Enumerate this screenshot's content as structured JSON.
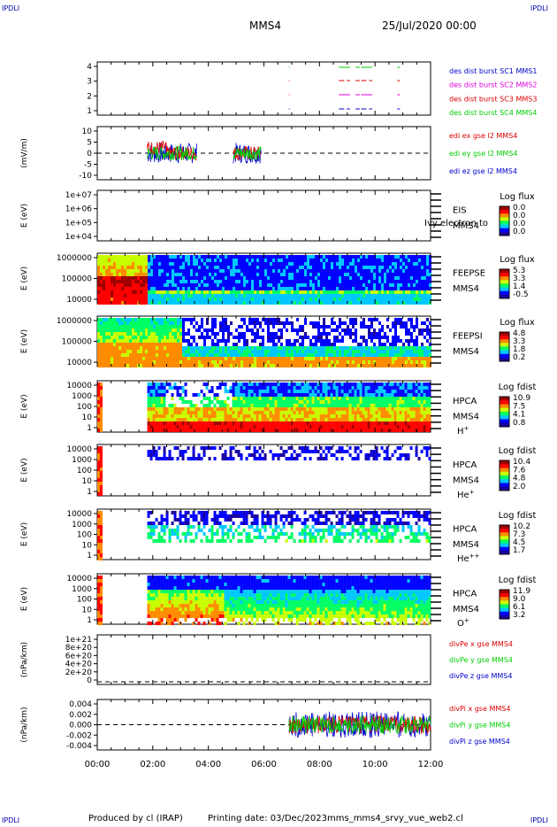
{
  "corner_label": "IPDLI",
  "header": {
    "spacecraft": "MMS4",
    "date": "25/Jul/2020 00:00"
  },
  "footer": {
    "producer": "Produced by cl (IRAP)",
    "printing": "Printing date: 03/Dec/2023",
    "script": "mms_mms4_srvy_vue_web2.cl"
  },
  "colors": {
    "red": "#dd0000",
    "green": "#00cc00",
    "blue": "#0000cc",
    "magenta": "#dd00dd",
    "spectrogram_scale": [
      "#1a00a0",
      "#0000ff",
      "#00c8ff",
      "#00ff64",
      "#c8ff00",
      "#ff8c00",
      "#ff0000",
      "#a00000"
    ]
  },
  "chart_data": {
    "type": "multi-panel time series",
    "x_tick_labels": [
      "00:00",
      "02:00",
      "04:00",
      "06:00",
      "08:00",
      "10:00",
      "12:00"
    ],
    "x_range_hours": [
      0,
      12
    ],
    "panels": [
      {
        "id": "burst",
        "y_ticks": [
          "4",
          "3",
          "2",
          "1"
        ],
        "right_labels": [
          {
            "text": "des dist burst SC1 MMS1",
            "color": "#0000cc"
          },
          {
            "text": "des dist burst SC2 MMS2",
            "color": "#dd00dd"
          },
          {
            "text": "des dist burst SC3 MMS3",
            "color": "#dd0000"
          },
          {
            "text": "des dist burst SC4 MMS4",
            "color": "#00cc00"
          }
        ],
        "intervals_hours": [
          [
            6.9,
            6.93
          ],
          [
            8.7,
            9.1
          ],
          [
            9.3,
            9.45
          ],
          [
            9.5,
            9.9
          ],
          [
            10.8,
            10.9
          ]
        ]
      },
      {
        "id": "edi",
        "ylabel": "(mV/m)",
        "y_ticks": [
          "10",
          "5",
          "0",
          "-5",
          "-10"
        ],
        "ylim": [
          -10,
          10
        ],
        "right_labels": [
          {
            "text": "edi ex gse l2 MMS4",
            "color": "#dd0000"
          },
          {
            "text": "edi ey gse l2 MMS4",
            "color": "#00cc00"
          },
          {
            "text": "edi ez gse l2 MMS4",
            "color": "#0000cc"
          }
        ],
        "intervals_hours": [
          [
            1.8,
            3.6
          ],
          [
            4.9,
            5.9
          ]
        ]
      },
      {
        "id": "eis",
        "ylabel": "E (eV)",
        "y_ticks": [
          "1e+07",
          "1e+06",
          "1e+05",
          "1e+04"
        ],
        "instrument": "EIS",
        "overlay_text": "Ivy electron to",
        "spacecraft": "MMS4",
        "cbar_title": "Log flux",
        "cbar_ticks": [
          "0.0",
          "0.0",
          "0.0",
          "0.0"
        ]
      },
      {
        "id": "feepse",
        "ylabel": "E (eV)",
        "y_ticks": [
          "1000000",
          "100000",
          "10000"
        ],
        "instrument": "FEEPSE",
        "spacecraft": "MMS4",
        "cbar_title": "Log flux",
        "cbar_ticks": [
          "5.3",
          "3.3",
          "1.4",
          "-0.5"
        ]
      },
      {
        "id": "feepsi",
        "ylabel": "E (eV)",
        "y_ticks": [
          "1000000",
          "100000",
          "10000"
        ],
        "instrument": "FEEPSI",
        "spacecraft": "MMS4",
        "cbar_title": "Log flux",
        "cbar_ticks": [
          "4.8",
          "3.3",
          "1.8",
          "0.2"
        ]
      },
      {
        "id": "hpca_h",
        "ylabel": "E (eV)",
        "y_ticks": [
          "10000",
          "1000",
          "100",
          "10",
          "1"
        ],
        "instrument": "HPCA",
        "spacecraft": "MMS4",
        "species": "H",
        "charge": "+",
        "cbar_title": "Log fdist",
        "cbar_ticks": [
          "10.9",
          "7.5",
          "4.1",
          "0.8"
        ]
      },
      {
        "id": "hpca_he1",
        "ylabel": "E (eV)",
        "y_ticks": [
          "10000",
          "1000",
          "100",
          "10",
          "1"
        ],
        "instrument": "HPCA",
        "spacecraft": "MMS4",
        "species": "He",
        "charge": "+",
        "cbar_title": "Log fdist",
        "cbar_ticks": [
          "10.4",
          "7.6",
          "4.8",
          "2.0"
        ]
      },
      {
        "id": "hpca_he2",
        "ylabel": "E (eV)",
        "y_ticks": [
          "10000",
          "1000",
          "100",
          "10",
          "1"
        ],
        "instrument": "HPCA",
        "spacecraft": "MMS4",
        "species": "He",
        "charge": "++",
        "cbar_title": "Log fdist",
        "cbar_ticks": [
          "10.2",
          "7.3",
          "4.5",
          "1.7"
        ]
      },
      {
        "id": "hpca_o",
        "ylabel": "E (eV)",
        "y_ticks": [
          "10000",
          "1000",
          "100",
          "10",
          "1"
        ],
        "instrument": "HPCA",
        "spacecraft": "MMS4",
        "species": "O",
        "charge": "+",
        "cbar_title": "Log fdist",
        "cbar_ticks": [
          "11.9",
          "9.0",
          "6.1",
          "3.2"
        ]
      },
      {
        "id": "divpe",
        "ylabel": "(nPa/km)",
        "y_ticks": [
          "1e+21",
          "8e+20",
          "6e+20",
          "4e+20",
          "2e+20",
          "0"
        ],
        "right_labels": [
          {
            "text": "divPe x gse MMS4",
            "color": "#dd0000"
          },
          {
            "text": "divPe y gse MMS4",
            "color": "#00cc00"
          },
          {
            "text": "divPe z gse MMS4",
            "color": "#0000cc"
          }
        ]
      },
      {
        "id": "divpi",
        "ylabel": "(nPa/km)",
        "y_ticks": [
          "0.004",
          "0.002",
          "0.000",
          "-0.002",
          "-0.004"
        ],
        "ylim": [
          -0.005,
          0.005
        ],
        "right_labels": [
          {
            "text": "divPi x gse MMS4",
            "color": "#dd0000"
          },
          {
            "text": "divPi y gse MMS4",
            "color": "#00cc00"
          },
          {
            "text": "divPi z gse MMS4",
            "color": "#0000cc"
          }
        ],
        "intervals_hours": [
          [
            6.9,
            12.0
          ]
        ]
      }
    ]
  }
}
